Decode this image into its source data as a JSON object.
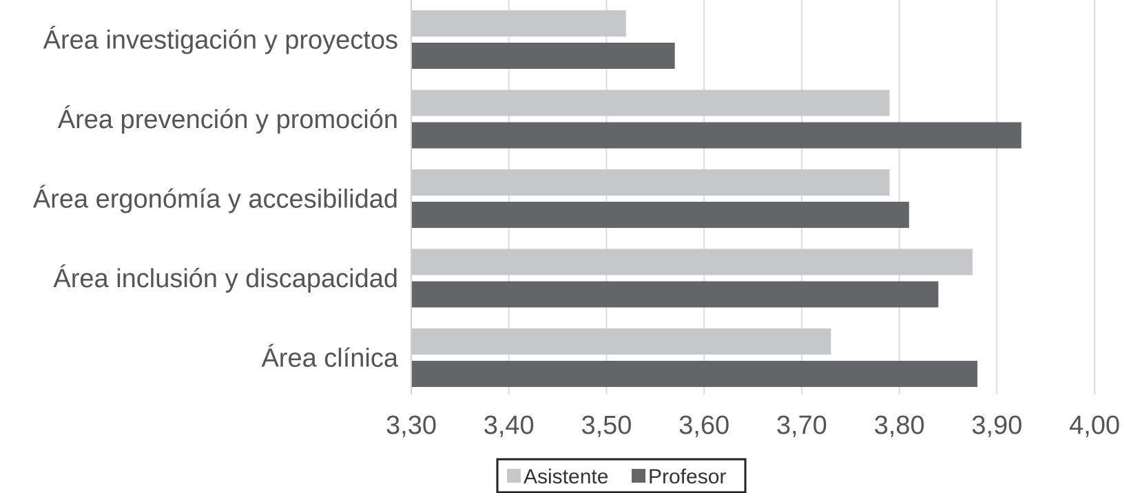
{
  "chart_data": {
    "type": "bar",
    "orientation": "horizontal",
    "categories": [
      "Área investigación y proyectos",
      "Área prevención y promoción",
      "Área ergonómía y accesibilidad",
      "Área inclusión y discapacidad",
      "Área clínica"
    ],
    "series": [
      {
        "name": "Asistente",
        "color": "#c6c7c9",
        "values": [
          3.52,
          3.79,
          3.79,
          3.875,
          3.73
        ]
      },
      {
        "name": "Profesor",
        "color": "#646569",
        "values": [
          3.57,
          3.925,
          3.81,
          3.84,
          3.88
        ]
      }
    ],
    "xlim": [
      3.3,
      4.0
    ],
    "ticks": [
      3.3,
      3.4,
      3.5,
      3.6,
      3.7,
      3.8,
      3.9,
      4.0
    ],
    "tick_labels": [
      "3,30",
      "3,40",
      "3,50",
      "3,60",
      "3,70",
      "3,80",
      "3,90",
      "4,00"
    ],
    "grid": true,
    "legend": "bottom-center",
    "title": "",
    "xlabel": "",
    "ylabel": ""
  }
}
